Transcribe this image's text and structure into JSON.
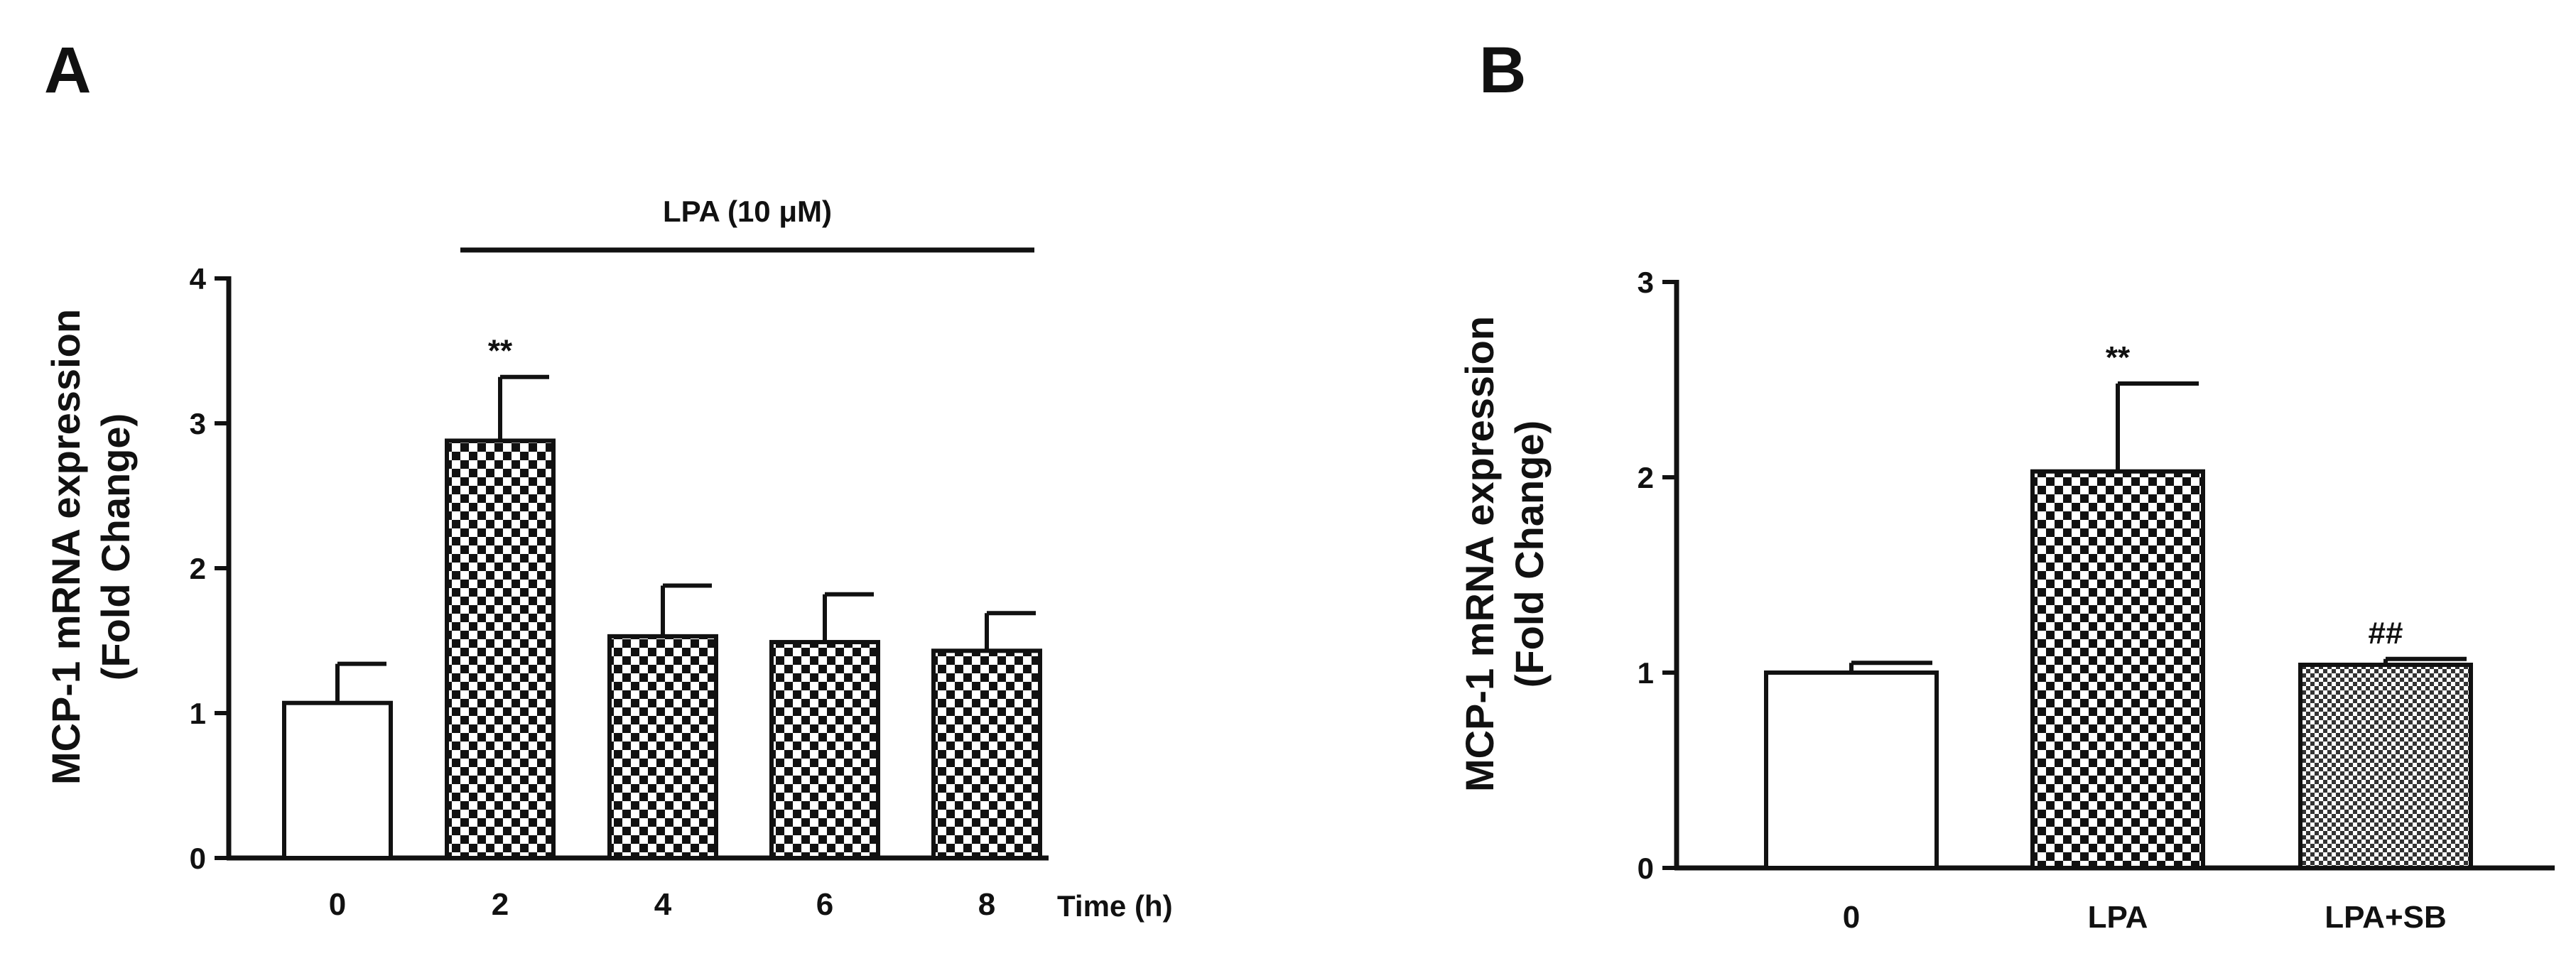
{
  "chart_data": [
    {
      "panel": "A",
      "type": "bar",
      "categories": [
        "0",
        "2",
        "4",
        "6",
        "8"
      ],
      "values": [
        1.07,
        2.88,
        1.53,
        1.49,
        1.43
      ],
      "errors": [
        0.27,
        0.44,
        0.35,
        0.33,
        0.26
      ],
      "fills": [
        "white",
        "checker",
        "checker",
        "checker",
        "checker"
      ],
      "annotations": [
        "",
        "**",
        "",
        "",
        ""
      ],
      "xlabel": "Time (h)",
      "ylabel_line1": "MCP-1 mRNA expression",
      "ylabel_line2": "(Fold Change)",
      "treatment_label": "LPA (10 μM)",
      "ylim": [
        0,
        4
      ],
      "yticks": [
        "0",
        "1",
        "2",
        "3",
        "4"
      ]
    },
    {
      "panel": "B",
      "type": "bar",
      "categories": [
        "0",
        "LPA",
        "LPA+SB"
      ],
      "values": [
        1.0,
        2.03,
        1.04
      ],
      "errors": [
        0.05,
        0.45,
        0.03
      ],
      "fills": [
        "white",
        "checker",
        "fine"
      ],
      "annotations": [
        "",
        "**",
        "##"
      ],
      "xlabel": "",
      "ylabel_line1": "MCP-1 mRNA expression",
      "ylabel_line2": "(Fold Change)",
      "ylim": [
        0,
        3
      ],
      "yticks": [
        "0",
        "1",
        "2",
        "3"
      ]
    }
  ]
}
